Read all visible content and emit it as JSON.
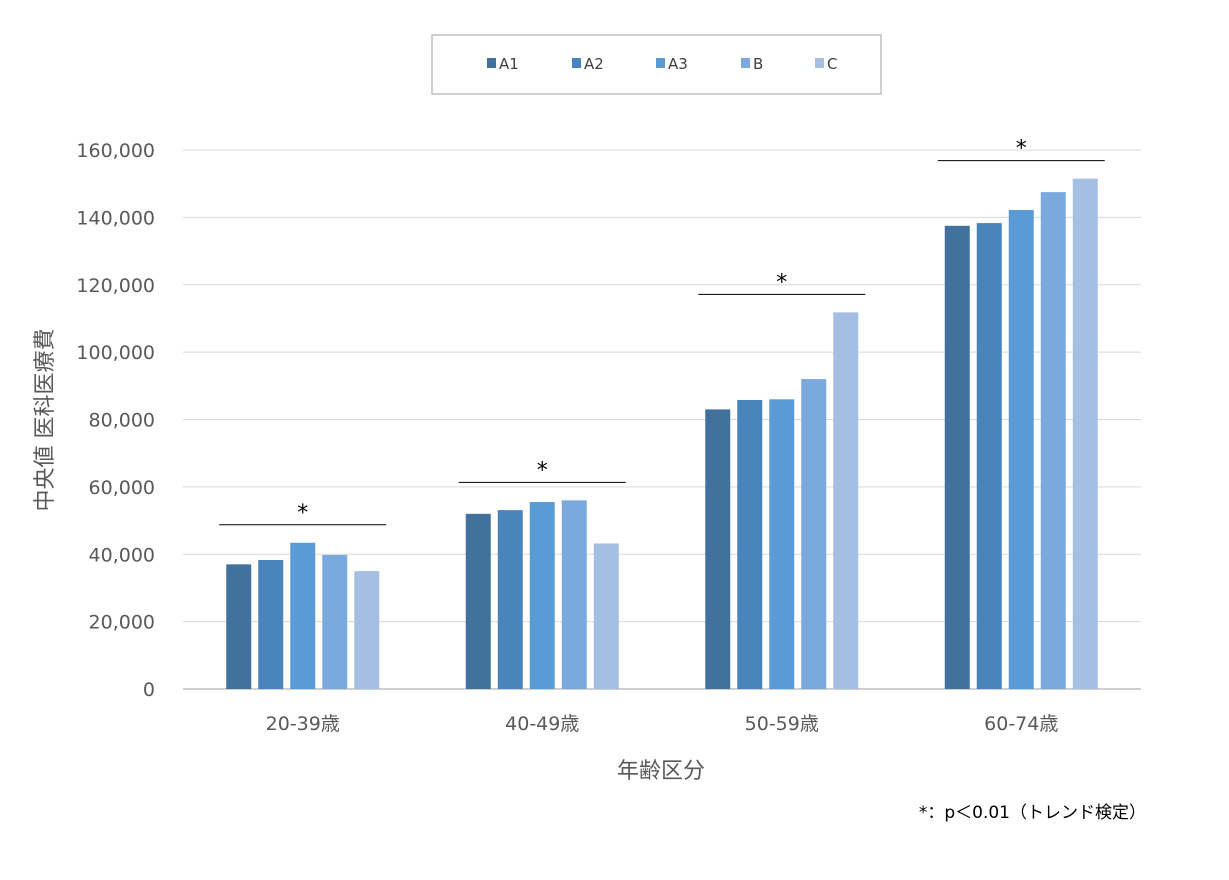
{
  "chart_data": {
    "type": "bar",
    "categories": [
      "20-39歳",
      "40-49歳",
      "50-59歳",
      "60-74歳"
    ],
    "series": [
      {
        "name": "A1",
        "color": "#41719c",
        "values": [
          37000,
          52000,
          83000,
          137500
        ]
      },
      {
        "name": "A2",
        "color": "#4a84bd",
        "values": [
          38300,
          53100,
          85800,
          138300
        ]
      },
      {
        "name": "A3",
        "color": "#5b9bd5",
        "values": [
          43400,
          55500,
          86000,
          142200
        ]
      },
      {
        "name": "B",
        "color": "#7ba9dd",
        "values": [
          39800,
          56000,
          92000,
          147500
        ]
      },
      {
        "name": "C",
        "color": "#a5bfe2",
        "values": [
          35000,
          43200,
          111800,
          151500
        ]
      }
    ],
    "xlabel": "年齢区分",
    "ylabel": "中央値 医科医療費",
    "ylim": [
      0,
      160000
    ],
    "yticks": [
      0,
      20000,
      40000,
      60000,
      80000,
      100000,
      120000,
      140000,
      160000
    ],
    "ytick_labels": [
      "0",
      "20,000",
      "40,000",
      "60,000",
      "80,000",
      "100,000",
      "120,000",
      "140,000",
      "160,000"
    ],
    "grid": true,
    "legend_position": "top",
    "significance": [
      {
        "category": "20-39歳",
        "mark": "*"
      },
      {
        "category": "40-49歳",
        "mark": "*"
      },
      {
        "category": "50-59歳",
        "mark": "*"
      },
      {
        "category": "60-74歳",
        "mark": "*"
      }
    ],
    "footnote": "*：p＜0.01（トレンド検定）"
  }
}
